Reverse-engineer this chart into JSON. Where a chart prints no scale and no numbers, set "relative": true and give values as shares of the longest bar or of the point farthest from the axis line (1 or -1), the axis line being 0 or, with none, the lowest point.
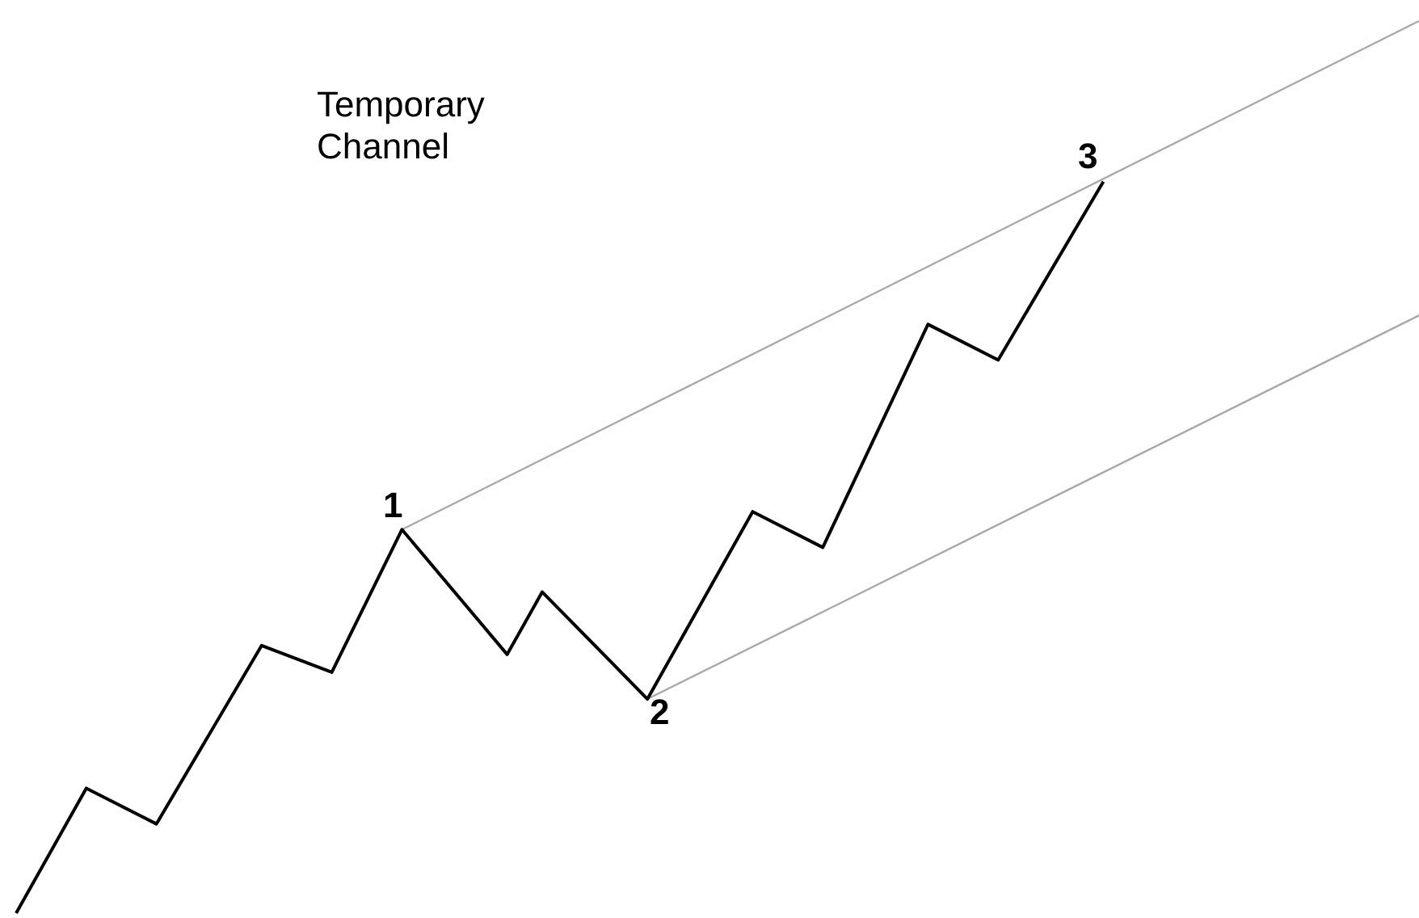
{
  "chart_data": {
    "type": "line",
    "relative": true,
    "categories": [
      null,
      null,
      null,
      null,
      null,
      null,
      null,
      null,
      null,
      null,
      null,
      null,
      null,
      null,
      null,
      null,
      null,
      null,
      null,
      null,
      null,
      null,
      null,
      null,
      null,
      null,
      null,
      null,
      null,
      null,
      null,
      null,
      null,
      null,
      null,
      null,
      null,
      null,
      null,
      null,
      null
    ],
    "series": [
      {
        "color": "#000000",
        "values": [
          0,
          null,
          0.14,
          null,
          0.1,
          null,
          null,
          0.3,
          null,
          0.27,
          null,
          0.43,
          null,
          null,
          0.29,
          0.36,
          null,
          null,
          0.24,
          null,
          null,
          0.45,
          null,
          0.41,
          null,
          null,
          0.66,
          null,
          0.62,
          null,
          null,
          0.82,
          null,
          null,
          null,
          null,
          null,
          null,
          null,
          null,
          null
        ]
      },
      {
        "color": "#a8a8a8",
        "values": [
          null,
          null,
          null,
          null,
          null,
          null,
          null,
          null,
          null,
          null,
          null,
          0.43,
          null,
          null,
          null,
          null,
          null,
          null,
          null,
          null,
          null,
          null,
          null,
          null,
          null,
          null,
          null,
          null,
          null,
          null,
          null,
          null,
          null,
          null,
          null,
          null,
          null,
          null,
          null,
          null,
          1.0
        ]
      },
      {
        "color": "#a8a8a8",
        "values": [
          null,
          null,
          null,
          null,
          null,
          null,
          null,
          null,
          null,
          null,
          null,
          null,
          null,
          null,
          null,
          null,
          null,
          null,
          0.24,
          null,
          null,
          null,
          null,
          null,
          null,
          null,
          null,
          null,
          null,
          null,
          null,
          null,
          null,
          null,
          null,
          null,
          null,
          null,
          null,
          null,
          0.67
        ]
      }
    ],
    "annotations": [
      "Temporary\nChannel",
      "1",
      "2",
      "3"
    ]
  }
}
